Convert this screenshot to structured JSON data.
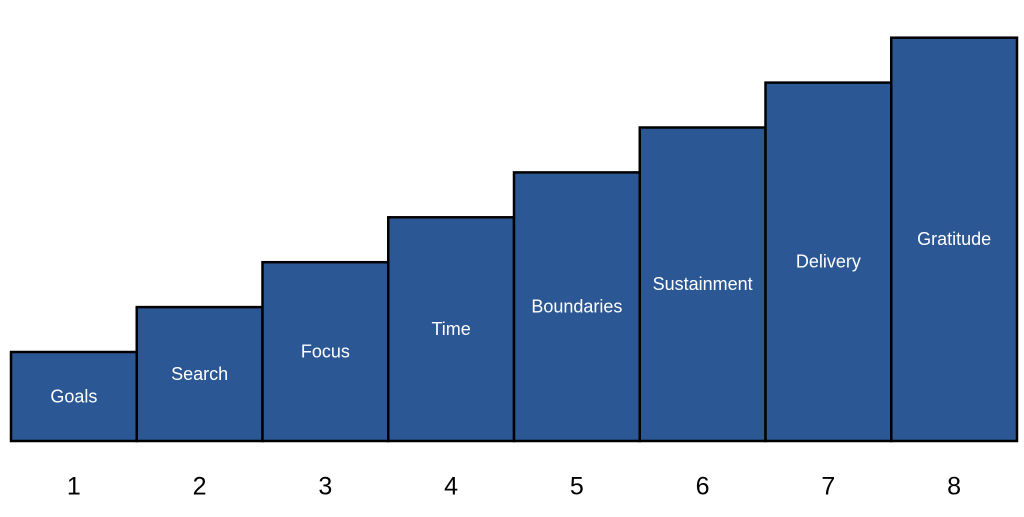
{
  "steps": [
    {
      "number": "1",
      "label": "Goals"
    },
    {
      "number": "2",
      "label": "Search"
    },
    {
      "number": "3",
      "label": "Focus"
    },
    {
      "number": "4",
      "label": "Time"
    },
    {
      "number": "5",
      "label": "Boundaries"
    },
    {
      "number": "6",
      "label": "Sustainment"
    },
    {
      "number": "7",
      "label": "Delivery"
    },
    {
      "number": "8",
      "label": "Gratitude"
    }
  ]
}
